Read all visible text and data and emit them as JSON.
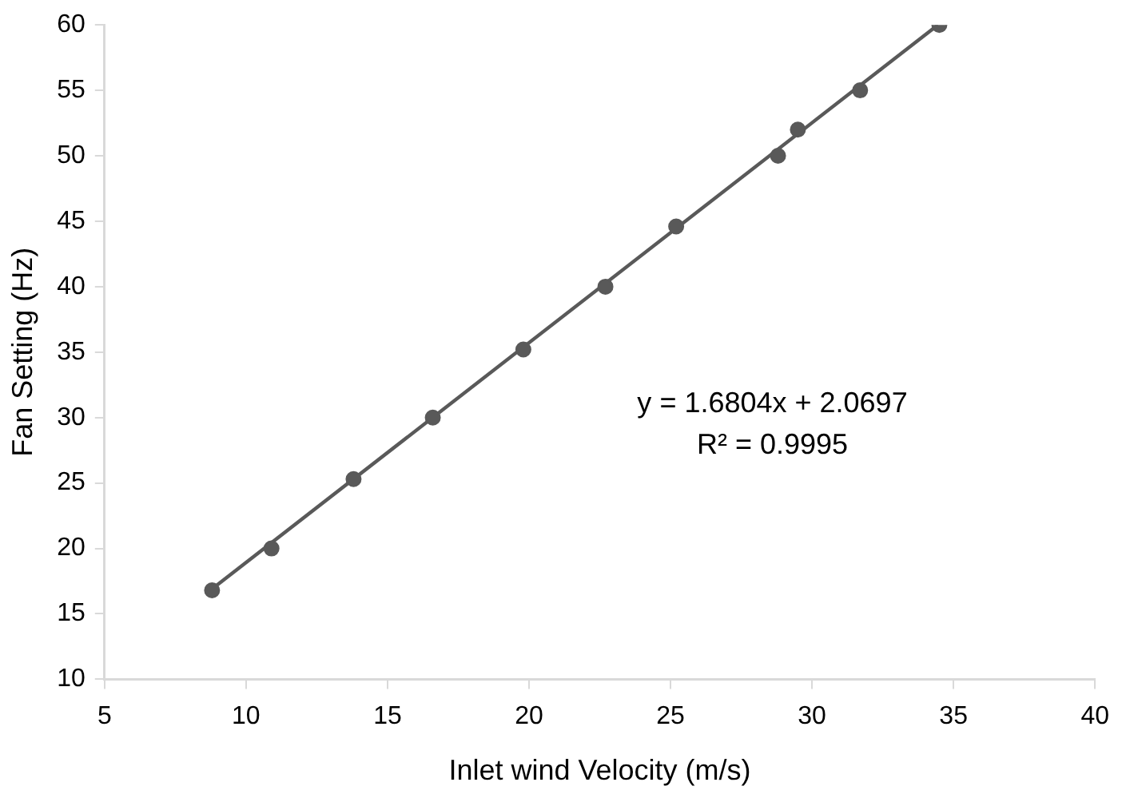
{
  "chart_data": {
    "type": "scatter",
    "xlabel": "Inlet wind Velocity (m/s)",
    "ylabel": "Fan Setting (Hz)",
    "xlim": [
      5,
      40
    ],
    "xticks": [
      5,
      10,
      15,
      20,
      25,
      30,
      35,
      40
    ],
    "ylim": [
      10,
      60
    ],
    "yticks": [
      10,
      15,
      20,
      25,
      30,
      35,
      40,
      45,
      50,
      55,
      60
    ],
    "grid": false,
    "legend": false,
    "marker": "circle",
    "series": [
      {
        "color": "#595959",
        "x": [
          8.8,
          10.9,
          13.8,
          16.6,
          19.8,
          22.7,
          25.2,
          28.8,
          29.5,
          31.7,
          34.5
        ],
        "values": [
          16.8,
          20,
          25.3,
          30,
          35.2,
          40,
          44.6,
          50,
          52,
          55,
          60
        ]
      },
      {
        "type": "line",
        "color": "#595959",
        "line_style": "solid",
        "marker": "none",
        "x": [
          8.8,
          34.45
        ],
        "values": [
          16.9,
          60
        ]
      }
    ],
    "annotations": [
      "y = 1.6804x + 2.0697",
      "R² = 0.9995"
    ]
  }
}
